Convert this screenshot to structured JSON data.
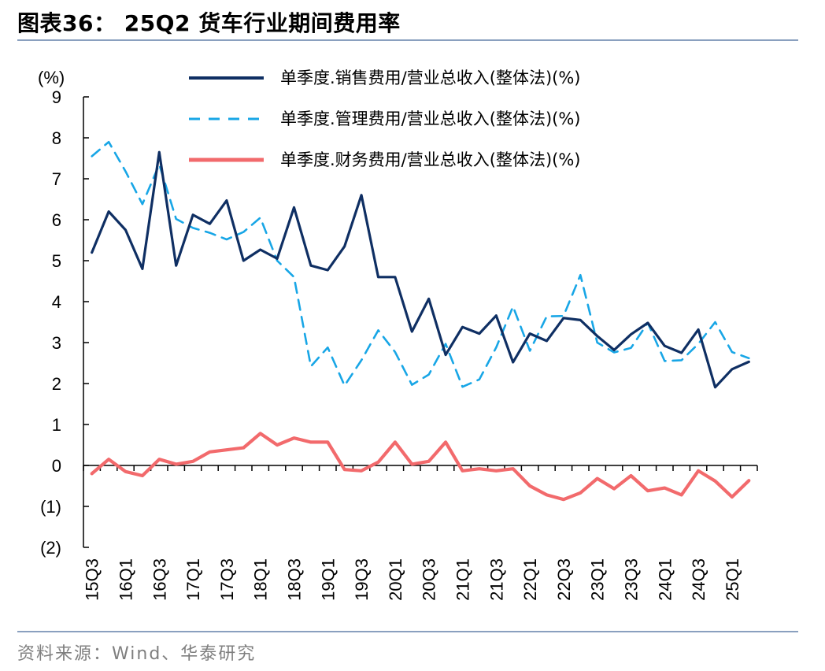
{
  "title": "图表36：  25Q2 货车行业期间费用率",
  "source": "资料来源：Wind、华泰研究",
  "colors": {
    "sales": "#0f2f63",
    "admin": "#18a6e6",
    "finance": "#f26a6c"
  },
  "chart_data": {
    "type": "line",
    "unit_label": "(%)",
    "ylim": [
      -2,
      9
    ],
    "ytick_labels": [
      "(2)",
      "(1)",
      "0",
      "1",
      "2",
      "3",
      "4",
      "5",
      "6",
      "7",
      "8",
      "9"
    ],
    "categories": [
      "15Q3",
      "15Q4",
      "16Q1",
      "16Q2",
      "16Q3",
      "16Q4",
      "17Q1",
      "17Q2",
      "17Q3",
      "17Q4",
      "18Q1",
      "18Q2",
      "18Q3",
      "18Q4",
      "19Q1",
      "19Q2",
      "19Q3",
      "19Q4",
      "20Q1",
      "20Q2",
      "20Q3",
      "20Q4",
      "21Q1",
      "21Q2",
      "21Q3",
      "21Q4",
      "22Q1",
      "22Q2",
      "22Q3",
      "22Q4",
      "23Q1",
      "23Q2",
      "23Q3",
      "23Q4",
      "24Q1",
      "24Q2",
      "24Q3",
      "24Q4",
      "25Q1",
      "25Q2"
    ],
    "xtick_labels": [
      "15Q3",
      "16Q1",
      "16Q3",
      "17Q1",
      "17Q3",
      "18Q1",
      "18Q3",
      "19Q1",
      "19Q3",
      "20Q1",
      "20Q3",
      "21Q1",
      "21Q3",
      "22Q1",
      "22Q3",
      "23Q1",
      "23Q3",
      "24Q1",
      "24Q3",
      "25Q1"
    ],
    "series": [
      {
        "name": "单季度.销售费用/营业总收入(整体法)(%)",
        "style": "solid",
        "values": [
          5.2,
          6.2,
          5.75,
          4.8,
          7.65,
          4.88,
          6.12,
          5.9,
          6.47,
          5.0,
          5.27,
          5.05,
          6.3,
          4.88,
          4.77,
          5.35,
          6.6,
          4.6,
          4.6,
          3.27,
          4.07,
          2.7,
          3.38,
          3.22,
          3.66,
          2.52,
          3.22,
          3.04,
          3.6,
          3.55,
          3.16,
          2.82,
          3.2,
          3.48,
          2.92,
          2.75,
          3.32,
          1.91,
          2.35,
          2.53
        ]
      },
      {
        "name": "单季度.管理费用/营业总收入(整体法)(%)",
        "style": "dashed",
        "values": [
          7.55,
          7.9,
          7.18,
          6.38,
          7.35,
          6.02,
          5.8,
          5.68,
          5.52,
          5.7,
          6.05,
          5.0,
          4.6,
          2.42,
          2.88,
          1.95,
          2.57,
          3.3,
          2.77,
          1.97,
          2.22,
          2.97,
          1.92,
          2.1,
          2.88,
          3.88,
          2.8,
          3.64,
          3.65,
          4.65,
          3.0,
          2.76,
          2.87,
          3.48,
          2.55,
          2.57,
          2.97,
          3.5,
          2.77,
          2.62
        ]
      },
      {
        "name": "单季度.财务费用/营业总收入(整体法)(%)",
        "style": "solid",
        "values": [
          -0.2,
          0.15,
          -0.15,
          -0.25,
          0.15,
          0.03,
          0.1,
          0.33,
          0.38,
          0.43,
          0.78,
          0.5,
          0.67,
          0.57,
          0.57,
          -0.1,
          -0.13,
          0.08,
          0.57,
          0.03,
          0.1,
          0.57,
          -0.13,
          -0.08,
          -0.13,
          -0.08,
          -0.5,
          -0.72,
          -0.83,
          -0.67,
          -0.32,
          -0.57,
          -0.25,
          -0.62,
          -0.55,
          -0.72,
          -0.13,
          -0.38,
          -0.77,
          -0.37
        ]
      }
    ]
  }
}
